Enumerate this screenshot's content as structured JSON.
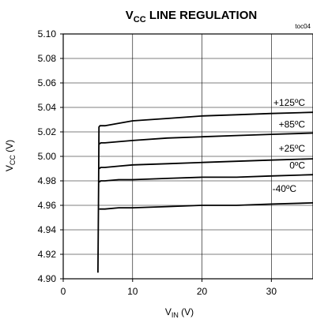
{
  "chart_data": {
    "type": "line",
    "title_main": "V",
    "title_sub": "CC",
    "title_rest": " LINE REGULATION",
    "tag": "toc04",
    "xlabel_main": "V",
    "xlabel_sub": "IN",
    "xlabel_rest": " (V)",
    "ylabel_main": "V",
    "ylabel_sub": "CC",
    "ylabel_rest": " (V)",
    "xlim": [
      0,
      36
    ],
    "ylim": [
      4.9,
      5.1
    ],
    "x_ticks": [
      0,
      10,
      20,
      30
    ],
    "x_tick_labels": [
      "0",
      "10",
      "20",
      "30"
    ],
    "y_ticks": [
      4.9,
      4.92,
      4.94,
      4.96,
      4.98,
      5.0,
      5.02,
      5.04,
      5.06,
      5.08,
      5.1
    ],
    "y_tick_labels": [
      "4.90",
      "4.92",
      "4.94",
      "4.96",
      "4.98",
      "5.00",
      "5.02",
      "5.04",
      "5.06",
      "5.08",
      "5.10"
    ],
    "grid": true,
    "series": [
      {
        "name": "+125ºC",
        "x": [
          5,
          5.1,
          5.15,
          5.3,
          6,
          8,
          10,
          15,
          20,
          25,
          30,
          36
        ],
        "y": [
          4.905,
          4.98,
          5.024,
          5.025,
          5.025,
          5.027,
          5.029,
          5.031,
          5.033,
          5.034,
          5.035,
          5.036
        ]
      },
      {
        "name": "+85ºC",
        "x": [
          5.2,
          5.4,
          6,
          8,
          10,
          15,
          20,
          25,
          30,
          36
        ],
        "y": [
          5.01,
          5.011,
          5.011,
          5.012,
          5.013,
          5.015,
          5.016,
          5.017,
          5.018,
          5.019
        ]
      },
      {
        "name": "+25ºC",
        "x": [
          5.2,
          5.4,
          6,
          8,
          10,
          15,
          20,
          25,
          30,
          36
        ],
        "y": [
          4.99,
          4.991,
          4.991,
          4.992,
          4.993,
          4.994,
          4.995,
          4.996,
          4.997,
          4.998
        ]
      },
      {
        "name": "0ºC",
        "x": [
          5.2,
          5.4,
          6,
          8,
          10,
          15,
          20,
          25,
          30,
          36
        ],
        "y": [
          4.979,
          4.98,
          4.98,
          4.981,
          4.981,
          4.982,
          4.983,
          4.983,
          4.984,
          4.985
        ]
      },
      {
        "name": "-40ºC",
        "x": [
          5.2,
          5.4,
          6,
          8,
          10,
          15,
          20,
          25,
          30,
          36
        ],
        "y": [
          4.957,
          4.957,
          4.957,
          4.958,
          4.958,
          4.959,
          4.96,
          4.96,
          4.961,
          4.962
        ]
      }
    ]
  }
}
